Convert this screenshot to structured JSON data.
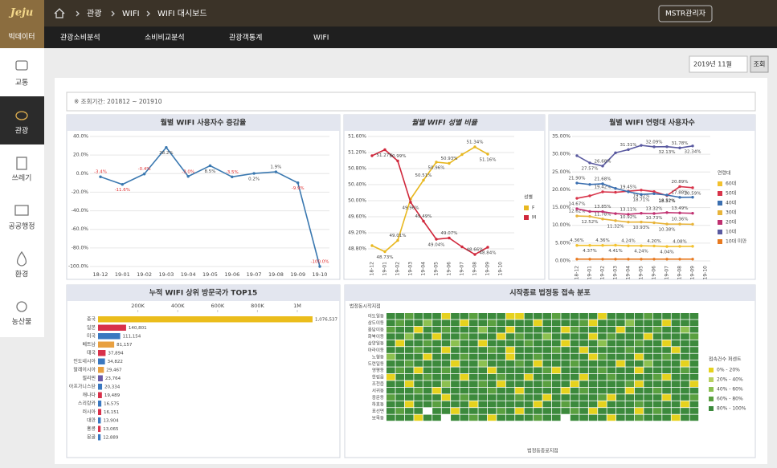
{
  "header": {
    "logo": "Jeju",
    "logo_sub": "빅데이터",
    "breadcrumb": [
      "관광",
      "WIFI",
      "WIFI 대시보드"
    ],
    "user": "MSTR관리자"
  },
  "menu": [
    "관광소비분석",
    "소비비교분석",
    "관광객통계",
    "WIFI"
  ],
  "sidebar": [
    "교통",
    "관광",
    "쓰레기",
    "공공행정",
    "환경",
    "농산물"
  ],
  "filter": {
    "month": "2019년 11월",
    "button": "조회"
  },
  "period": "※ 조회기간: 201812 ~ 201910",
  "chart_data": [
    {
      "type": "line",
      "title": "월별 WIFI 사용자수 증감율",
      "categories": [
        "18-12",
        "19-01",
        "19-02",
        "19-03",
        "19-04",
        "19-05",
        "19-06",
        "19-07",
        "19-08",
        "19-09",
        "19-10"
      ],
      "values": [
        -3.4,
        -11.6,
        -0.4,
        28.2,
        -3.0,
        8.5,
        -3.5,
        0.2,
        1.9,
        -9.9,
        -100.0
      ],
      "value_labels": [
        "-3.4%",
        "-11.6%",
        "-0.4%",
        "28.2%",
        "-3.0%",
        "8.5%",
        "-3.5%",
        "0.2%",
        "1.9%",
        "-9.9%",
        "-100.0%"
      ],
      "color": "#3a78b0",
      "label_color": "#444444",
      "negative_label_color": "#e03030",
      "ylim": [
        -100,
        40
      ],
      "yticks": [
        {
          "value": -100,
          "label": "-100.0%"
        },
        {
          "value": -80,
          "label": "-80.0%"
        },
        {
          "value": -60,
          "label": "-60.0%"
        },
        {
          "value": -40,
          "label": "-40.0%"
        },
        {
          "value": -20,
          "label": "-20.0%"
        },
        {
          "value": 0,
          "label": "0.0%"
        },
        {
          "value": 20,
          "label": "20.0%"
        },
        {
          "value": 40,
          "label": "40.0%"
        }
      ],
      "grid": true
    },
    {
      "type": "line",
      "title": "월별 WIFI 성별 비율",
      "title_style": "italic",
      "categories": [
        "18-12",
        "19-01",
        "19-02",
        "19-03",
        "19-04",
        "19-05",
        "19-06",
        "19-07",
        "19-08",
        "19-09",
        "19-10"
      ],
      "xtick_rotation": -90,
      "legend_title": "성별",
      "label_color": "#444444",
      "series": [
        {
          "name": "F",
          "color": "#e8b820",
          "values": [
            48.88,
            48.73,
            49.01,
            50.04,
            50.51,
            50.96,
            50.93,
            51.15,
            51.34,
            51.16,
            null
          ],
          "value_labels": [
            null,
            "48.73%",
            "49.01%",
            null,
            "50.51%",
            "50.96%",
            "50.93%",
            null,
            "51.34%",
            "51.16%",
            null
          ]
        },
        {
          "name": "M",
          "color": "#d0283c",
          "values": [
            51.12,
            51.27,
            50.99,
            49.96,
            49.49,
            49.04,
            49.07,
            48.85,
            48.66,
            48.84,
            null
          ],
          "value_labels": [
            null,
            "51.27%",
            "50.99%",
            "49.96%",
            "49.49%",
            "49.04%",
            "49.07%",
            null,
            "48.66%",
            "48.84%",
            null
          ]
        }
      ],
      "ylim": [
        48.6,
        51.6
      ],
      "yticks": [
        {
          "value": 48.8,
          "label": "48.80%"
        },
        {
          "value": 49.2,
          "label": "49.20%"
        },
        {
          "value": 49.6,
          "label": "49.60%"
        },
        {
          "value": 50.0,
          "label": "50.00%"
        },
        {
          "value": 50.4,
          "label": "50.40%"
        },
        {
          "value": 50.8,
          "label": "50.80%"
        },
        {
          "value": 51.2,
          "label": "51.20%"
        },
        {
          "value": 51.6,
          "label": "51.60%"
        }
      ],
      "grid": true
    },
    {
      "type": "line",
      "title": "월별 WIFI 연령대 사용자수",
      "categories": [
        "18-12",
        "19-01",
        "19-02",
        "19-03",
        "19-04",
        "19-05",
        "19-06",
        "19-07",
        "19-08",
        "19-09",
        "19-10"
      ],
      "xtick_rotation": -90,
      "legend_title": "연령대",
      "label_color": "#444444",
      "series": [
        {
          "name": "60대",
          "color": "#f2c12e",
          "values": [
            4.36,
            4.37,
            4.36,
            4.41,
            4.24,
            4.24,
            4.2,
            4.04,
            4.08,
            4.1,
            null
          ],
          "value_labels": [
            "4.36%",
            "4.37%",
            "4.36%",
            "4.41%",
            "4.24%",
            "4.24%",
            "4.20%",
            "4.04%",
            "4.08%",
            null,
            null
          ]
        },
        {
          "name": "50대",
          "color": "#d8344a",
          "values": [
            17.6,
            18.3,
            19.42,
            19.3,
            19.6,
            19.92,
            19.5,
            18.37,
            20.89,
            20.59,
            null
          ],
          "value_labels": [
            null,
            null,
            "19.42%",
            null,
            null,
            "19.92%",
            null,
            "18.37%",
            "20.89%",
            "20.59%",
            null
          ]
        },
        {
          "name": "40대",
          "color": "#3b6fb0",
          "values": [
            21.9,
            21.5,
            21.68,
            20.4,
            19.45,
            18.71,
            18.9,
            18.52,
            17.88,
            17.9,
            null
          ],
          "value_labels": [
            "21.90%",
            null,
            "21.68%",
            null,
            "19.45%",
            "18.71%",
            null,
            "18.52%",
            "17.88%",
            null,
            null
          ]
        },
        {
          "name": "30대",
          "color": "#e8b43a",
          "values": [
            12.62,
            12.52,
            11.78,
            11.32,
            10.92,
            10.93,
            10.73,
            10.38,
            10.36,
            10.3,
            null
          ],
          "value_labels": [
            "12.62%",
            "12.52%",
            "11.78%",
            "11.32%",
            "10.92%",
            "10.93%",
            "10.73%",
            "10.38%",
            "10.36%",
            null,
            null
          ]
        },
        {
          "name": "20대",
          "color": "#c03070",
          "values": [
            14.67,
            13.9,
            13.85,
            13.3,
            13.11,
            13.4,
            13.32,
            13.6,
            13.49,
            13.4,
            null
          ],
          "value_labels": [
            "14.67%",
            null,
            "13.85%",
            null,
            "13.11%",
            null,
            "13.32%",
            null,
            "13.49%",
            null,
            null
          ]
        },
        {
          "name": "10대",
          "color": "#5a5aa0",
          "values": [
            29.6,
            27.57,
            26.68,
            30.4,
            31.31,
            32.5,
            32.09,
            32.13,
            31.78,
            32.34,
            null
          ],
          "value_labels": [
            null,
            "27.57%",
            "26.68%",
            null,
            "31.31%",
            null,
            "32.09%",
            "32.13%",
            "31.78%",
            "32.34%",
            null
          ]
        },
        {
          "name": "10대 미만",
          "color": "#e87a20",
          "values": [
            0.5,
            0.5,
            0.5,
            0.5,
            0.5,
            0.5,
            0.5,
            0.5,
            0.5,
            0.5,
            null
          ]
        }
      ],
      "ylim": [
        0,
        35
      ],
      "yticks": [
        {
          "value": 0,
          "label": "0.00%"
        },
        {
          "value": 5,
          "label": "5.00%"
        },
        {
          "value": 10,
          "label": "10.00%"
        },
        {
          "value": 15,
          "label": "15.00%"
        },
        {
          "value": 20,
          "label": "20.00%"
        },
        {
          "value": 25,
          "label": "25.00%"
        },
        {
          "value": 30,
          "label": "30.00%"
        },
        {
          "value": 35,
          "label": "35.00%"
        }
      ],
      "grid": true
    },
    {
      "type": "hbar",
      "title": "누적 WIFI 상위 방문국가 TOP15",
      "categories": [
        "중국",
        "일본",
        "미국",
        "베트남",
        "태국",
        "인도네시아",
        "말레이시아",
        "필리핀",
        "아프가니스탄",
        "캐나다",
        "스리랑카",
        "러시아",
        "대만",
        "홍콩",
        "몽골"
      ],
      "values": [
        1076537,
        140801,
        111154,
        81157,
        37894,
        34822,
        29467,
        23764,
        20334,
        19489,
        16575,
        16151,
        13904,
        13065,
        12889
      ],
      "value_labels": [
        "1,076,537",
        "140,801",
        "111,154",
        "81,157",
        "37,894",
        "34,822",
        "29,467",
        "23,764",
        "20,334",
        "19,489",
        "16,575",
        "16,151",
        "13,904",
        "13,065",
        "12,889"
      ],
      "colors": [
        "#ebbd1c",
        "#d8304a",
        "#3a78c0",
        "#e8a040",
        "#d8304a",
        "#3a78c0",
        "#e8a040",
        "#6a5aa8",
        "#3a78c0",
        "#d8304a",
        "#3a78c0",
        "#d8304a",
        "#3a78c0",
        "#d8304a",
        "#3a78c0"
      ],
      "xlim": [
        0,
        1200000
      ],
      "xticks": [
        {
          "value": 200000,
          "label": "200K"
        },
        {
          "value": 400000,
          "label": "400K"
        },
        {
          "value": 600000,
          "label": "600K"
        },
        {
          "value": 800000,
          "label": "800K"
        },
        {
          "value": 1000000,
          "label": "1M"
        }
      ]
    },
    {
      "type": "heatmap",
      "title": "시작종료 법정동 접속 분포",
      "ylabel": "법정동시작지점",
      "xlabel": "법정동종료지점",
      "rows": [
        "이도일동",
        "삼도이동",
        "용담이동",
        "화북이동",
        "삼양일동",
        "아라이동",
        "노형동",
        "도련일동",
        "영평동",
        "한림읍",
        "조천읍",
        "서귀동",
        "중문동",
        "하효동",
        "표선면",
        "보목동"
      ],
      "legend_title": "접속건수 퍼센트",
      "legend": [
        "0% - 20%",
        "20% - 40%",
        "40% - 60%",
        "60% - 80%",
        "80% - 100%"
      ],
      "colors": [
        "#e6d21e",
        "#b8d060",
        "#8cc050",
        "#5aa040",
        "#3c8a3c"
      ],
      "matrix": [
        [
          4,
          4,
          3,
          4,
          4,
          4,
          0,
          4,
          4,
          3,
          4,
          4,
          4,
          0,
          0,
          4,
          4,
          4,
          3,
          4,
          4,
          4,
          4,
          0,
          4,
          4,
          4,
          4,
          3,
          4,
          4,
          4,
          4,
          4
        ],
        [
          4,
          3,
          4,
          4,
          2,
          4,
          4,
          4,
          0,
          4,
          4,
          3,
          4,
          4,
          4,
          4,
          0,
          4,
          4,
          4,
          4,
          3,
          0,
          4,
          4,
          4,
          2,
          4,
          4,
          4,
          0,
          4,
          4,
          4
        ],
        [
          3,
          4,
          4,
          0,
          4,
          4,
          3,
          4,
          4,
          4,
          2,
          4,
          4,
          0,
          4,
          4,
          4,
          4,
          4,
          0,
          3,
          4,
          4,
          4,
          4,
          0,
          4,
          4,
          4,
          3,
          4,
          4,
          2,
          4
        ],
        [
          4,
          4,
          2,
          4,
          4,
          0,
          4,
          4,
          3,
          4,
          4,
          4,
          0,
          4,
          3,
          4,
          4,
          2,
          4,
          4,
          4,
          4,
          0,
          4,
          3,
          4,
          4,
          4,
          0,
          4,
          4,
          4,
          4,
          3
        ],
        [
          4,
          0,
          4,
          4,
          3,
          4,
          4,
          2,
          4,
          4,
          0,
          4,
          4,
          4,
          4,
          3,
          4,
          4,
          4,
          0,
          4,
          4,
          4,
          2,
          4,
          4,
          4,
          3,
          4,
          4,
          0,
          4,
          4,
          4
        ],
        [
          4,
          4,
          4,
          3,
          4,
          4,
          0,
          4,
          4,
          4,
          4,
          3,
          4,
          0,
          4,
          4,
          4,
          4,
          3,
          4,
          4,
          0,
          4,
          4,
          4,
          4,
          3,
          4,
          4,
          4,
          4,
          0,
          4,
          4
        ],
        [
          2,
          4,
          4,
          4,
          0,
          4,
          4,
          4,
          3,
          4,
          4,
          4,
          4,
          0,
          4,
          4,
          3,
          4,
          4,
          4,
          4,
          4,
          0,
          3,
          4,
          4,
          4,
          0,
          4,
          4,
          3,
          4,
          4,
          4
        ],
        [
          4,
          4,
          3,
          4,
          4,
          4,
          4,
          0,
          4,
          4,
          2,
          4,
          4,
          4,
          3,
          4,
          0,
          4,
          4,
          4,
          3,
          4,
          4,
          4,
          4,
          0,
          4,
          4,
          2,
          4,
          4,
          4,
          0,
          4
        ],
        [
          4,
          3,
          4,
          0,
          4,
          4,
          3,
          4,
          4,
          4,
          4,
          0,
          4,
          4,
          4,
          4,
          4,
          3,
          0,
          4,
          4,
          4,
          4,
          3,
          4,
          4,
          4,
          0,
          4,
          4,
          4,
          4,
          3,
          4
        ],
        [
          0,
          4,
          4,
          4,
          3,
          4,
          4,
          4,
          0,
          4,
          4,
          4,
          3,
          4,
          4,
          0,
          4,
          4,
          4,
          4,
          4,
          0,
          4,
          4,
          3,
          4,
          4,
          4,
          4,
          3,
          0,
          4,
          4,
          4
        ],
        [
          4,
          4,
          0,
          4,
          4,
          4,
          2,
          4,
          4,
          4,
          3,
          4,
          0,
          4,
          4,
          4,
          4,
          3,
          4,
          4,
          0,
          4,
          4,
          4,
          4,
          4,
          3,
          0,
          4,
          4,
          4,
          4,
          4,
          0
        ],
        [
          4,
          4,
          4,
          3,
          4,
          0,
          4,
          4,
          4,
          4,
          4,
          3,
          4,
          4,
          0,
          4,
          4,
          4,
          4,
          0,
          4,
          3,
          4,
          4,
          4,
          4,
          0,
          4,
          4,
          3,
          4,
          4,
          4,
          4
        ],
        [
          3,
          4,
          4,
          4,
          4,
          4,
          0,
          4,
          3,
          4,
          4,
          4,
          4,
          4,
          3,
          4,
          4,
          0,
          4,
          4,
          4,
          4,
          4,
          3,
          0,
          4,
          4,
          4,
          4,
          4,
          0,
          4,
          4,
          3
        ],
        [
          4,
          4,
          0,
          4,
          4,
          3,
          4,
          4,
          4,
          0,
          4,
          4,
          4,
          4,
          4,
          4,
          0,
          4,
          4,
          3,
          4,
          4,
          4,
          0,
          4,
          4,
          4,
          3,
          4,
          4,
          4,
          4,
          0,
          4
        ],
        [
          4,
          3,
          4,
          4,
          null,
          4,
          4,
          0,
          4,
          4,
          4,
          4,
          3,
          4,
          0,
          4,
          4,
          4,
          4,
          4,
          3,
          4,
          0,
          4,
          4,
          4,
          4,
          0,
          4,
          3,
          4,
          4,
          4,
          4
        ],
        [
          4,
          4,
          4,
          0,
          4,
          4,
          null,
          4,
          4,
          3,
          4,
          0,
          4,
          4,
          4,
          4,
          3,
          4,
          4,
          null,
          4,
          4,
          4,
          4,
          0,
          4,
          4,
          3,
          4,
          4,
          4,
          0,
          4,
          4
        ]
      ]
    }
  ]
}
